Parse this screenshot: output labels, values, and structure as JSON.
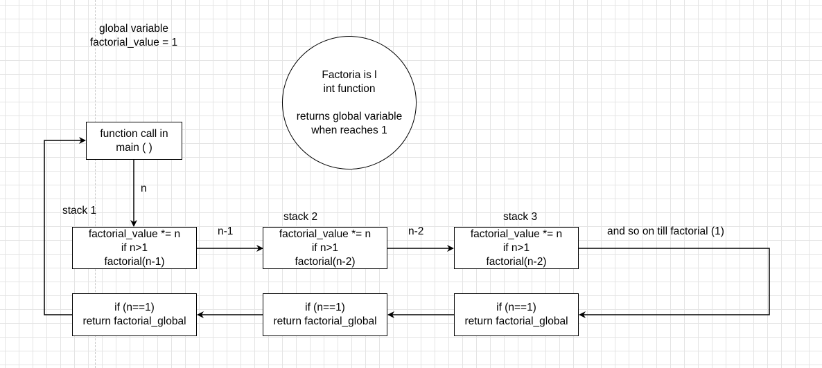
{
  "global_note": {
    "line1": "global variable",
    "line2": "factorial_value = 1"
  },
  "note_circle": {
    "line1": "Factoria is l",
    "line2": "int function",
    "line3": "returns global variable",
    "line4": "when reaches 1"
  },
  "main_box": {
    "line1": "function call in",
    "line2": "main ( )"
  },
  "labels": {
    "n": "n",
    "stack1": "stack 1",
    "stack2": "stack 2",
    "stack3": "stack 3",
    "n_minus_1": "n-1",
    "n_minus_2": "n-2",
    "and_so_on": "and so on till factorial (1)"
  },
  "stack_boxes": [
    {
      "line1": "factorial_value *= n",
      "line2": "if n>1",
      "line3": "factorial(n-1)"
    },
    {
      "line1": "factorial_value *= n",
      "line2": "if n>1",
      "line3": "factorial(n-2)"
    },
    {
      "line1": "factorial_value *= n",
      "line2": "if n>1",
      "line3": "factorial(n-2)"
    }
  ],
  "return_boxes": [
    {
      "line1": "if (n==1)",
      "line2": "return factorial_global"
    },
    {
      "line1": "if (n==1)",
      "line2": "return factorial_global"
    },
    {
      "line1": "if (n==1)",
      "line2": "return factorial_global"
    }
  ]
}
